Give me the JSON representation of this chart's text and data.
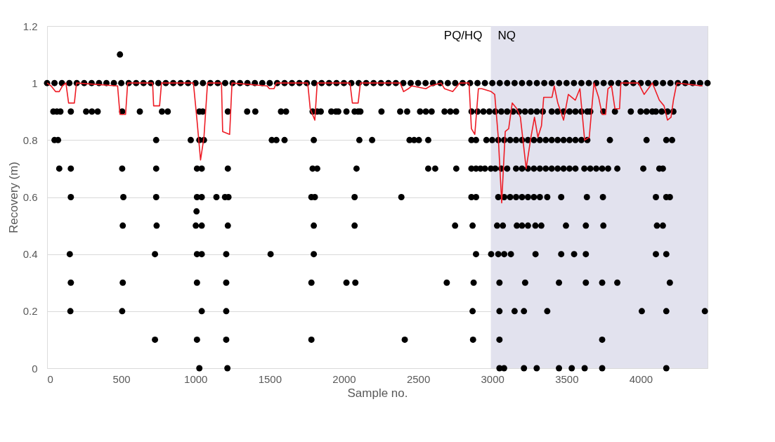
{
  "chart_data": {
    "type": "scatter",
    "xlabel": "Sample no.",
    "ylabel": "Recovery (m)",
    "xlim": [
      0,
      4450
    ],
    "xticks": [
      0,
      500,
      1000,
      1500,
      2000,
      2500,
      3000,
      3500,
      4000
    ],
    "ylim": [
      0,
      1.2
    ],
    "yticks": [
      0,
      0.2,
      0.4,
      0.6,
      0.8,
      1,
      1.2
    ],
    "grid": "y",
    "annotations": [
      "PQ/HQ"
    ],
    "bands": [
      {
        "axis": "x",
        "from": 2990,
        "to": 4450,
        "label": "NQ",
        "color": "#e2e2ee"
      }
    ],
    "series": [
      {
        "color": "#000000",
        "marker": "circle",
        "x": [
          0,
          50,
          100,
          150,
          200,
          250,
          300,
          350,
          400,
          450,
          500,
          550,
          600,
          650,
          700,
          750,
          800,
          850,
          900,
          950,
          1000,
          1050,
          1100,
          1150,
          1200,
          1250,
          1300,
          1350,
          1400,
          1450,
          1500,
          1550,
          1600,
          1650,
          1700,
          1750,
          1800,
          1850,
          1900,
          1950,
          2000,
          2050,
          2100,
          2150,
          2200,
          2250,
          2300,
          2350,
          2400,
          2450,
          2500,
          2550,
          2600,
          2650,
          2700,
          2750,
          2800,
          2850,
          2900,
          2950,
          3000,
          3050,
          3100,
          3150,
          3200,
          3250,
          3300,
          3350,
          3400,
          3450,
          3500,
          3550,
          3600,
          3650,
          3700,
          3750,
          3800,
          3850,
          3900,
          3950,
          4000,
          4050,
          4100,
          4150,
          4200,
          4250,
          4300,
          4350,
          4400,
          4450,
          491,
          42,
          66,
          90,
          160,
          263,
          302,
          341,
          506,
          625,
          774,
          813,
          1026,
          1049,
          1218,
          1348,
          1403,
          1576,
          1610,
          1789,
          1820,
          1844,
          1915,
          1946,
          1962,
          2017,
          2072,
          2096,
          2111,
          2253,
          2379,
          2426,
          2513,
          2552,
          2591,
          2678,
          2717,
          2756,
          2860,
          2900,
          2940,
          2980,
          3020,
          3060,
          3100,
          3140,
          3180,
          3220,
          3260,
          3300,
          3340,
          3400,
          3440,
          3480,
          3520,
          3560,
          3600,
          3640,
          3660,
          3748,
          3826,
          3933,
          3999,
          4039,
          4078,
          4102,
          4141,
          4180,
          4220,
          50,
          74,
          735,
          968,
          1026,
          1057,
          1514,
          1545,
          1600,
          1797,
          2104,
          2190,
          2442,
          2473,
          2505,
          2568,
          2859,
          2890,
          2960,
          2999,
          3040,
          3080,
          3120,
          3160,
          3200,
          3240,
          3280,
          3320,
          3360,
          3400,
          3440,
          3480,
          3520,
          3560,
          3600,
          3640,
          3792,
          4039,
          4172,
          4211,
          82,
          160,
          506,
          735,
          1010,
          1042,
          1218,
          1789,
          1820,
          2085,
          2568,
          2615,
          2757,
          2859,
          2890,
          2920,
          2950,
          2990,
          3020,
          3060,
          3100,
          3160,
          3200,
          3240,
          3280,
          3320,
          3360,
          3400,
          3440,
          3480,
          3520,
          3560,
          3620,
          3660,
          3700,
          3740,
          3780,
          3842,
          4017,
          4125,
          4149,
          160,
          514,
          735,
          1010,
          1042,
          1141,
          1199,
          1222,
          1781,
          1804,
          2072,
          2387,
          2859,
          2890,
          3040,
          3080,
          3120,
          3160,
          3200,
          3240,
          3280,
          3320,
          3370,
          3464,
          3637,
          3745,
          4102,
          4172,
          4196,
          1007,
          510,
          738,
          1002,
          1042,
          1218,
          1797,
          2072,
          2749,
          2867,
          3032,
          3071,
          3165,
          3200,
          3240,
          3290,
          3330,
          3496,
          3630,
          3748,
          4109,
          4149,
          153,
          727,
          1010,
          1042,
          1207,
          1506,
          1797,
          2890,
          2992,
          3040,
          3080,
          3125,
          3291,
          3464,
          3551,
          3630,
          4102,
          4172,
          160,
          510,
          1010,
          1207,
          1781,
          2017,
          2077,
          2693,
          2874,
          3048,
          3221,
          3449,
          3630,
          3740,
          3842,
          4196,
          157,
          506,
          1042,
          1207,
          2867,
          3048,
          3150,
          3213,
          3370,
          4007,
          4172,
          4432,
          727,
          1010,
          1207,
          1781,
          2410,
          2870,
          3048,
          3740,
          1026,
          1215,
          3048,
          3079,
          3213,
          3299,
          3449,
          3535,
          3622,
          3740,
          4172
        ],
        "values": [
          1,
          1,
          1,
          1,
          1,
          1,
          1,
          1,
          1,
          1,
          1,
          1,
          1,
          1,
          1,
          1,
          1,
          1,
          1,
          1,
          1,
          1,
          1,
          1,
          1,
          1,
          1,
          1,
          1,
          1,
          1,
          1,
          1,
          1,
          1,
          1,
          1,
          1,
          1,
          1,
          1,
          1,
          1,
          1,
          1,
          1,
          1,
          1,
          1,
          1,
          1,
          1,
          1,
          1,
          1,
          1,
          1,
          1,
          1,
          1,
          1,
          1,
          1,
          1,
          1,
          1,
          1,
          1,
          1,
          1,
          1,
          1,
          1,
          1,
          1,
          1,
          1,
          1,
          1,
          1,
          1,
          1,
          1,
          1,
          1,
          1,
          1,
          1,
          1,
          1,
          1.1,
          0.9,
          0.9,
          0.9,
          0.9,
          0.9,
          0.9,
          0.9,
          0.9,
          0.9,
          0.9,
          0.9,
          0.9,
          0.9,
          0.9,
          0.9,
          0.9,
          0.9,
          0.9,
          0.9,
          0.9,
          0.9,
          0.9,
          0.9,
          0.9,
          0.9,
          0.9,
          0.9,
          0.9,
          0.9,
          0.9,
          0.9,
          0.9,
          0.9,
          0.9,
          0.9,
          0.9,
          0.9,
          0.9,
          0.9,
          0.9,
          0.9,
          0.9,
          0.9,
          0.9,
          0.9,
          0.9,
          0.9,
          0.9,
          0.9,
          0.9,
          0.9,
          0.9,
          0.9,
          0.9,
          0.9,
          0.9,
          0.9,
          0.9,
          0.9,
          0.9,
          0.9,
          0.9,
          0.9,
          0.9,
          0.9,
          0.9,
          0.9,
          0.9,
          0.8,
          0.8,
          0.8,
          0.8,
          0.8,
          0.8,
          0.8,
          0.8,
          0.8,
          0.8,
          0.8,
          0.8,
          0.8,
          0.8,
          0.8,
          0.8,
          0.8,
          0.8,
          0.8,
          0.8,
          0.8,
          0.8,
          0.8,
          0.8,
          0.8,
          0.8,
          0.8,
          0.8,
          0.8,
          0.8,
          0.8,
          0.8,
          0.8,
          0.8,
          0.8,
          0.8,
          0.8,
          0.8,
          0.8,
          0.8,
          0.7,
          0.7,
          0.7,
          0.7,
          0.7,
          0.7,
          0.7,
          0.7,
          0.7,
          0.7,
          0.7,
          0.7,
          0.7,
          0.7,
          0.7,
          0.7,
          0.7,
          0.7,
          0.7,
          0.7,
          0.7,
          0.7,
          0.7,
          0.7,
          0.7,
          0.7,
          0.7,
          0.7,
          0.7,
          0.7,
          0.7,
          0.7,
          0.7,
          0.7,
          0.7,
          0.7,
          0.7,
          0.7,
          0.7,
          0.7,
          0.7,
          0.6,
          0.6,
          0.6,
          0.6,
          0.6,
          0.6,
          0.6,
          0.6,
          0.6,
          0.6,
          0.6,
          0.6,
          0.6,
          0.6,
          0.6,
          0.6,
          0.6,
          0.6,
          0.6,
          0.6,
          0.6,
          0.6,
          0.6,
          0.6,
          0.6,
          0.6,
          0.6,
          0.6,
          0.6,
          0.55,
          0.5,
          0.5,
          0.5,
          0.5,
          0.5,
          0.5,
          0.5,
          0.5,
          0.5,
          0.5,
          0.5,
          0.5,
          0.5,
          0.5,
          0.5,
          0.5,
          0.5,
          0.5,
          0.5,
          0.5,
          0.5,
          0.4,
          0.4,
          0.4,
          0.4,
          0.4,
          0.4,
          0.4,
          0.4,
          0.4,
          0.4,
          0.4,
          0.4,
          0.4,
          0.4,
          0.4,
          0.4,
          0.4,
          0.4,
          0.3,
          0.3,
          0.3,
          0.3,
          0.3,
          0.3,
          0.3,
          0.3,
          0.3,
          0.3,
          0.3,
          0.3,
          0.3,
          0.3,
          0.3,
          0.3,
          0.2,
          0.2,
          0.2,
          0.2,
          0.2,
          0.2,
          0.2,
          0.2,
          0.2,
          0.2,
          0.2,
          0.2,
          0.1,
          0.1,
          0.1,
          0.1,
          0.1,
          0.1,
          0.1,
          0.1,
          0,
          0,
          0,
          0,
          0,
          0,
          0,
          0,
          0,
          0,
          0
        ]
      },
      {
        "type": "line",
        "color": "#ee1c25",
        "marker": "none",
        "line_style": "solid",
        "x": [
          0,
          27,
          57,
          82,
          104,
          127,
          145,
          184,
          198,
          475,
          491,
          529,
          543,
          711,
          718,
          758,
          771,
          986,
          1010,
          1034,
          1057,
          1081,
          1175,
          1183,
          1230,
          1246,
          1482,
          1498,
          1529,
          1545,
          1756,
          1773,
          1804,
          1820,
          2041,
          2057,
          2096,
          2111,
          2379,
          2402,
          2434,
          2458,
          2552,
          2583,
          2654,
          2678,
          2733,
          2780,
          2843,
          2859,
          2882,
          2906,
          2930,
          2992,
          3016,
          3040,
          3063,
          3087,
          3110,
          3134,
          3165,
          3189,
          3228,
          3260,
          3284,
          3307,
          3331,
          3346,
          3402,
          3417,
          3441,
          3480,
          3512,
          3559,
          3590,
          3622,
          3653,
          3685,
          3716,
          3740,
          3763,
          3779,
          3803,
          3826,
          3857,
          3866,
          3936,
          3984,
          4023,
          4078,
          4094,
          4125,
          4157,
          4180,
          4204,
          4220,
          4243,
          4416
        ],
        "values": [
          1,
          0.99,
          0.97,
          0.97,
          0.99,
          1,
          0.93,
          0.93,
          1,
          0.99,
          0.89,
          0.89,
          1,
          1,
          0.92,
          0.92,
          1,
          1,
          0.87,
          0.73,
          0.81,
          1,
          1,
          0.83,
          0.82,
          1,
          0.99,
          0.98,
          0.98,
          1,
          1,
          0.91,
          0.87,
          1,
          1,
          0.93,
          0.93,
          1,
          1,
          0.97,
          0.98,
          0.99,
          0.98,
          0.99,
          1,
          0.98,
          0.97,
          1,
          1,
          0.84,
          0.82,
          0.98,
          0.98,
          0.97,
          0.96,
          0.81,
          0.58,
          0.83,
          0.84,
          0.93,
          0.91,
          0.88,
          0.7,
          0.81,
          0.88,
          0.81,
          0.85,
          0.95,
          0.95,
          0.99,
          0.93,
          0.87,
          0.96,
          0.94,
          0.98,
          0.8,
          0.81,
          1,
          0.95,
          0.89,
          0.89,
          0.98,
          0.99,
          0.91,
          0.91,
          1,
          1,
          1,
          0.96,
          1,
          0.98,
          0.94,
          0.92,
          0.87,
          0.88,
          0.94,
          1,
          0.99
        ]
      }
    ]
  }
}
